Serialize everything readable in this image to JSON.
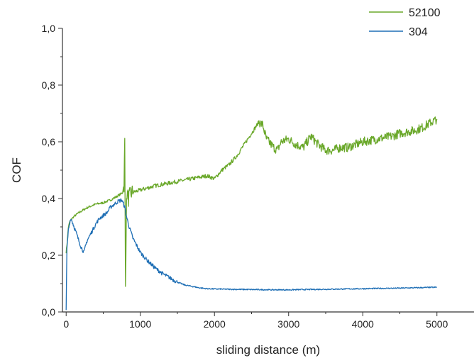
{
  "chart_data": {
    "type": "line",
    "title": "",
    "xlabel": "sliding distance (m)",
    "ylabel": "COF",
    "xlim": [
      -50,
      5500
    ],
    "ylim": [
      0,
      1.0
    ],
    "x_ticks": [
      0,
      1000,
      2000,
      3000,
      4000,
      5000
    ],
    "x_tick_labels": [
      "0",
      "1000",
      "2000",
      "3000",
      "4000",
      "5000"
    ],
    "y_ticks": [
      0,
      0.2,
      0.4,
      0.6,
      0.8,
      1.0
    ],
    "y_tick_labels": [
      "0,0",
      "0,2",
      "0,4",
      "0,6",
      "0,8",
      "1,0"
    ],
    "grid": false,
    "legend_position": "top-right",
    "series": [
      {
        "name": "52100",
        "color": "#6aa82a",
        "x": [
          0,
          15,
          30,
          50,
          80,
          120,
          200,
          300,
          400,
          500,
          600,
          700,
          760,
          780,
          790,
          800,
          810,
          820,
          840,
          880,
          1000,
          1200,
          1400,
          1600,
          1800,
          1900,
          2000,
          2100,
          2200,
          2300,
          2400,
          2500,
          2600,
          2650,
          2700,
          2800,
          2850,
          2900,
          3000,
          3100,
          3200,
          3300,
          3400,
          3500,
          3600,
          3700,
          3800,
          3900,
          4000,
          4100,
          4200,
          4300,
          4400,
          4500,
          4600,
          4700,
          4800,
          4900,
          5000
        ],
        "y": [
          0.21,
          0.25,
          0.3,
          0.32,
          0.33,
          0.34,
          0.355,
          0.37,
          0.38,
          0.385,
          0.395,
          0.41,
          0.42,
          0.45,
          0.6,
          0.09,
          0.33,
          0.42,
          0.4,
          0.42,
          0.43,
          0.445,
          0.455,
          0.465,
          0.475,
          0.48,
          0.47,
          0.5,
          0.52,
          0.55,
          0.59,
          0.63,
          0.67,
          0.66,
          0.61,
          0.58,
          0.57,
          0.6,
          0.61,
          0.59,
          0.58,
          0.62,
          0.59,
          0.57,
          0.57,
          0.58,
          0.58,
          0.59,
          0.6,
          0.605,
          0.61,
          0.615,
          0.62,
          0.63,
          0.635,
          0.64,
          0.65,
          0.665,
          0.68
        ]
      },
      {
        "name": "304",
        "color": "#1f6fb5",
        "x": [
          0,
          10,
          30,
          60,
          80,
          120,
          160,
          200,
          240,
          280,
          340,
          400,
          450,
          500,
          550,
          600,
          650,
          700,
          750,
          790,
          820,
          850,
          900,
          1000,
          1100,
          1200,
          1300,
          1400,
          1500,
          1600,
          1700,
          1800,
          1900,
          2000,
          2200,
          2500,
          2800,
          3000,
          3200,
          3500,
          4000,
          4500,
          5000
        ],
        "y": [
          0.0,
          0.22,
          0.29,
          0.33,
          0.32,
          0.29,
          0.26,
          0.23,
          0.21,
          0.25,
          0.28,
          0.31,
          0.33,
          0.34,
          0.35,
          0.37,
          0.38,
          0.39,
          0.395,
          0.37,
          0.33,
          0.3,
          0.26,
          0.21,
          0.18,
          0.155,
          0.135,
          0.12,
          0.105,
          0.095,
          0.09,
          0.085,
          0.082,
          0.081,
          0.08,
          0.079,
          0.078,
          0.078,
          0.079,
          0.08,
          0.082,
          0.084,
          0.087
        ]
      }
    ]
  }
}
